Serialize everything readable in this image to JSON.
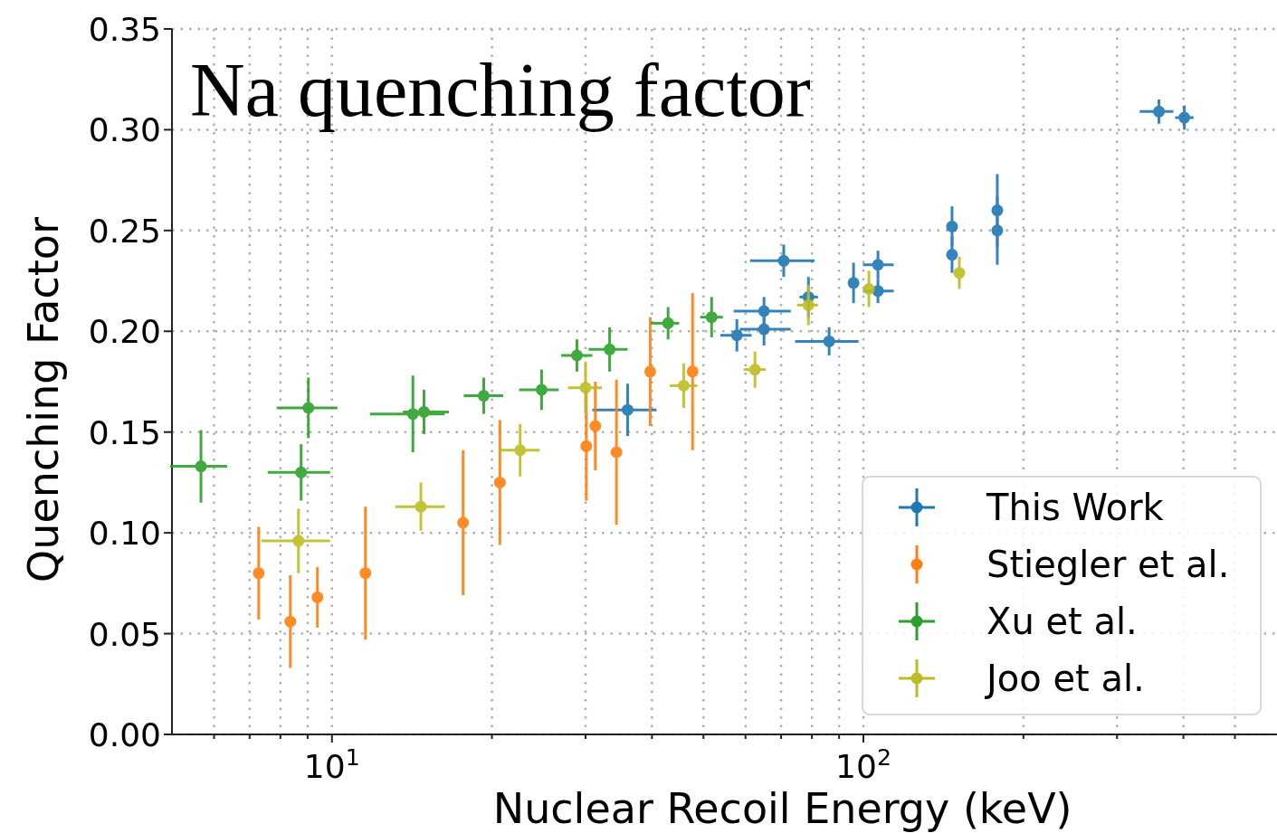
{
  "chart_data": {
    "type": "scatter",
    "title": "Na quenching factor",
    "xlabel": "Nuclear Recoil Energy (keV)",
    "ylabel": "Quenching Factor",
    "log": "x",
    "grid": true,
    "legend": "bottom right",
    "marker": "circle",
    "xlim": [
      5,
      600
    ],
    "ylim": [
      0,
      0.35
    ],
    "xticks": [
      {
        "value": 6,
        "label": null
      },
      {
        "value": 7,
        "label": null
      },
      {
        "value": 8,
        "label": null
      },
      {
        "value": 9,
        "label": null
      },
      {
        "value": 10,
        "label": "10$^{1}$"
      },
      {
        "value": 20,
        "label": null
      },
      {
        "value": 30,
        "label": null
      },
      {
        "value": 40,
        "label": null
      },
      {
        "value": 50,
        "label": null
      },
      {
        "value": 60,
        "label": null
      },
      {
        "value": 70,
        "label": null
      },
      {
        "value": 80,
        "label": null
      },
      {
        "value": 90,
        "label": null
      },
      {
        "value": 100,
        "label": "10$^{2}$"
      },
      {
        "value": 200,
        "label": null
      },
      {
        "value": 300,
        "label": null
      },
      {
        "value": 400,
        "label": null
      },
      {
        "value": 500,
        "label": null
      }
    ],
    "yticks": [
      {
        "value": 0,
        "label": "0.00"
      },
      {
        "value": 0.05,
        "label": "0.05"
      },
      {
        "value": 0.1,
        "label": "0.10"
      },
      {
        "value": 0.15,
        "label": "0.15"
      },
      {
        "value": 0.2,
        "label": "0.20"
      },
      {
        "value": 0.25,
        "label": "0.25"
      },
      {
        "value": 0.3,
        "label": "0.30"
      },
      {
        "value": 0.35,
        "label": "0.35"
      }
    ],
    "series": [
      {
        "name": "This Work",
        "color": "#1f77b4",
        "x": [
          36,
          57.8,
          65,
          65,
          70.8,
          78.8,
          86.2,
          95.8,
          106.5,
          106.5,
          146.8,
          146.8,
          178.6,
          178.6,
          359.8,
          401.6
        ],
        "values": [
          0.161,
          0.198,
          0.201,
          0.21,
          0.235,
          0.217,
          0.195,
          0.224,
          0.233,
          0.22,
          0.252,
          0.238,
          0.26,
          0.25,
          0.309,
          0.306
        ],
        "errors": [
          0.013,
          0.008,
          0.008,
          0.007,
          0.008,
          0.01,
          0.007,
          0.01,
          0.007,
          0.006,
          0.01,
          0.009,
          0.018,
          0.017,
          0.006,
          0.006
        ],
        "xerrors": [
          [
            30.9,
            40.8
          ],
          [
            53.8,
            61.6
          ],
          [
            58.5,
            73
          ],
          [
            57,
            73
          ],
          [
            61.2,
            80.9
          ],
          [
            75.8,
            82.1
          ],
          [
            74.4,
            97.9
          ],
          null,
          [
            99.8,
            114
          ],
          [
            99.8,
            114
          ],
          null,
          null,
          null,
          null,
          [
            331,
            383
          ],
          [
            386,
            418
          ]
        ]
      },
      {
        "name": "Stiegler et al.",
        "color": "#ff7f0e",
        "x": [
          7.28,
          8.35,
          9.39,
          11.56,
          17.65,
          20.7,
          30.1,
          31.3,
          34.3,
          39.7,
          47.7
        ],
        "values": [
          0.08,
          0.056,
          0.068,
          0.08,
          0.105,
          0.125,
          0.143,
          0.153,
          0.14,
          0.18,
          0.18
        ],
        "errors": [
          0.023,
          0.023,
          0.015,
          0.033,
          0.036,
          0.031,
          0.027,
          0.022,
          0.036,
          0.027,
          0.039
        ]
      },
      {
        "name": "Xu et al.",
        "color": "#2ca02c",
        "x": [
          5.67,
          8.75,
          9.03,
          14.2,
          14.9,
          19.3,
          24.8,
          28.9,
          33.3,
          42.9,
          51.8
        ],
        "values": [
          0.133,
          0.13,
          0.162,
          0.159,
          0.16,
          0.168,
          0.171,
          0.188,
          0.191,
          0.204,
          0.207
        ],
        "errors": [
          0.018,
          0.014,
          0.015,
          0.019,
          0.011,
          0.009,
          0.01,
          0.008,
          0.011,
          0.008,
          0.01
        ],
        "xerrors": [
          [
            4.96,
            6.35
          ],
          [
            7.57,
            9.92
          ],
          [
            7.87,
            10.24
          ],
          [
            11.8,
            16.3
          ],
          [
            13.6,
            16.6
          ],
          [
            17.7,
            21
          ],
          [
            22.5,
            26.7
          ],
          [
            27,
            30.9
          ],
          [
            30.4,
            36
          ],
          [
            39.8,
            45
          ],
          [
            49.3,
            54.4
          ]
        ]
      },
      {
        "name": "Joo et al.",
        "color": "#bcbd22",
        "x": [
          8.65,
          14.7,
          22.6,
          30,
          45.9,
          62.5,
          78.8,
          102.4,
          151.5
        ],
        "values": [
          0.096,
          0.113,
          0.141,
          0.172,
          0.173,
          0.181,
          0.213,
          0.221,
          0.229
        ],
        "errors": [
          0.016,
          0.012,
          0.013,
          0.013,
          0.011,
          0.009,
          0.01,
          0.009,
          0.008
        ],
        "xerrors": [
          [
            7.37,
            9.92
          ],
          [
            13.15,
            16.3
          ],
          [
            20.7,
            24.6
          ],
          [
            27.8,
            32.2
          ],
          [
            43.2,
            48.7
          ],
          [
            59.5,
            65.5
          ],
          [
            75,
            82.1
          ],
          null,
          null
        ]
      }
    ]
  }
}
